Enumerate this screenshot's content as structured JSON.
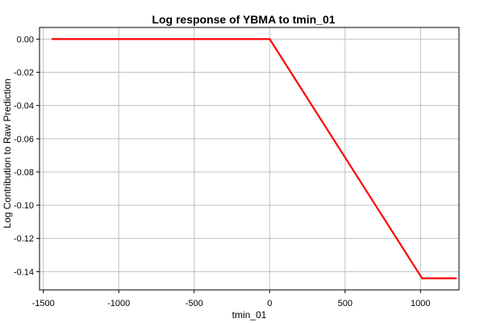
{
  "chart_data": {
    "type": "line",
    "title": "Log response of YBMA to tmin_01",
    "xlabel": "tmin_01",
    "ylabel": "Log Contribution to Raw Prediction",
    "xlim": [
      -1525,
      1255
    ],
    "ylim": [
      -0.151,
      0.007
    ],
    "grid": true,
    "x_ticks": [
      -1500,
      -1000,
      -500,
      0,
      500,
      1000
    ],
    "x_tick_labels": [
      "-1500",
      "-1000",
      "-500",
      "0",
      "500",
      "1000"
    ],
    "y_ticks": [
      0.0,
      -0.02,
      -0.04,
      -0.06,
      -0.08,
      -0.1,
      -0.12,
      -0.14
    ],
    "y_tick_labels": [
      "0.00",
      "-0.02",
      "-0.04",
      "-0.06",
      "-0.08",
      "-0.10",
      "-0.12",
      "-0.14"
    ],
    "series": [
      {
        "color": "#ff0000",
        "x": [
          -1440,
          0,
          1010,
          1235
        ],
        "y": [
          0.0,
          0.0,
          -0.144,
          -0.144
        ]
      }
    ]
  }
}
